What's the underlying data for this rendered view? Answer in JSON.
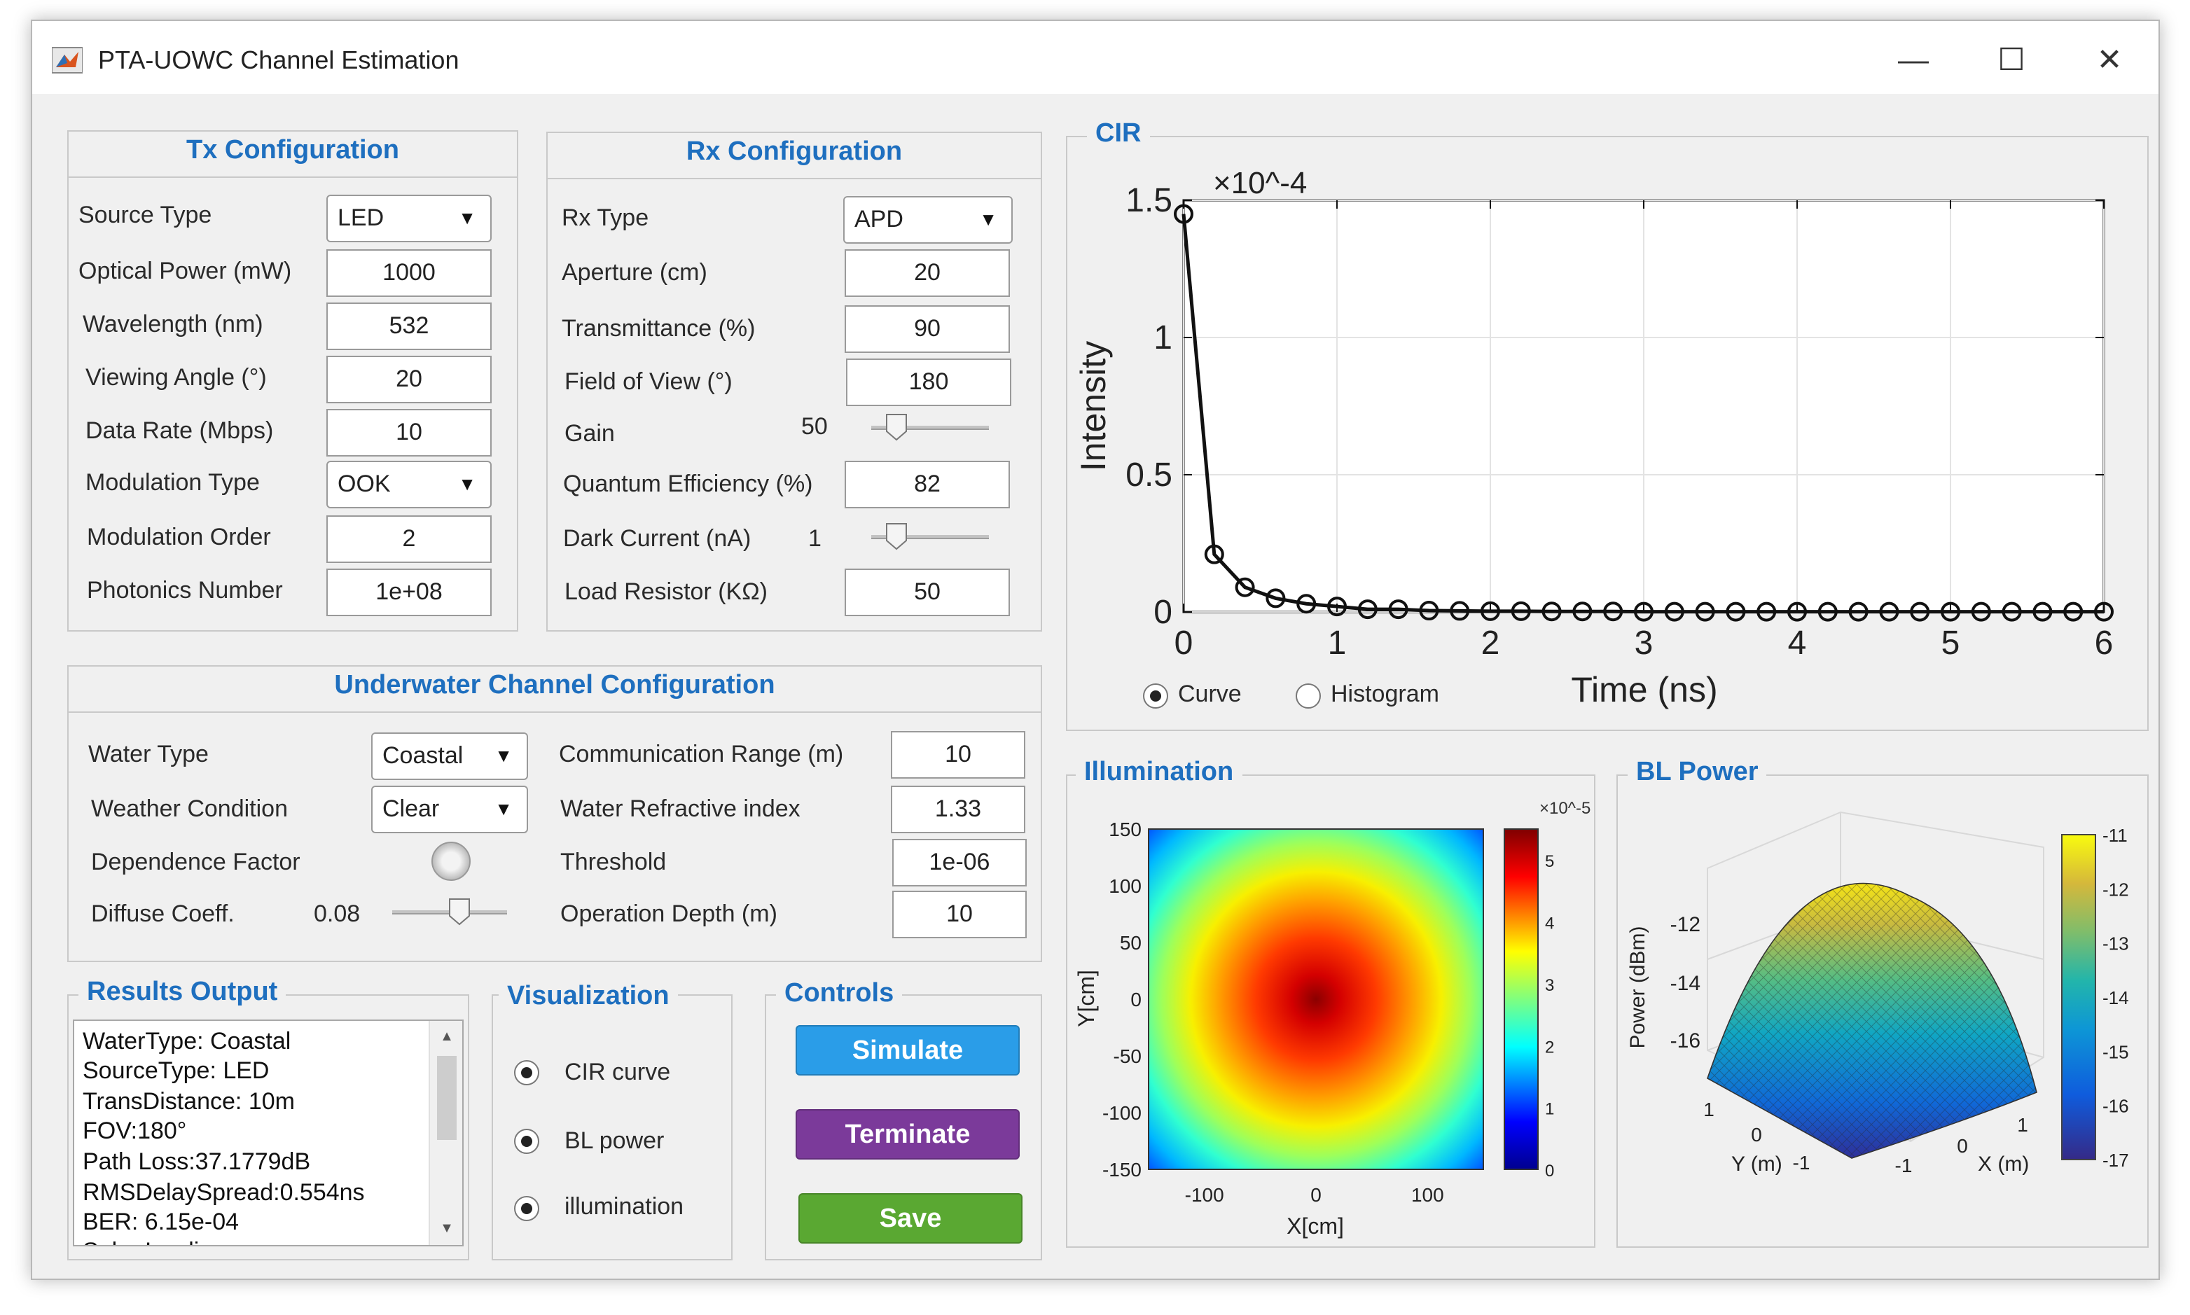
{
  "window": {
    "title": "PTA-UOWC Channel Estimation",
    "minimize": "—",
    "maximize": "☐",
    "close": "✕"
  },
  "tx": {
    "title": "Tx Configuration",
    "source_type": {
      "label": "Source Type",
      "value": "LED"
    },
    "optical_power": {
      "label": "Optical Power (mW)",
      "value": "1000"
    },
    "wavelength": {
      "label": "Wavelength (nm)",
      "value": "532"
    },
    "viewing_angle": {
      "label": "Viewing Angle (°)",
      "value": "20"
    },
    "data_rate": {
      "label": "Data Rate (Mbps)",
      "value": "10"
    },
    "modulation_type": {
      "label": "Modulation Type",
      "value": "OOK"
    },
    "modulation_order": {
      "label": "Modulation Order",
      "value": "2"
    },
    "photonics_number": {
      "label": "Photonics Number",
      "value": "1e+08"
    }
  },
  "rx": {
    "title": "Rx Configuration",
    "rx_type": {
      "label": "Rx Type",
      "value": "APD"
    },
    "aperture": {
      "label": "Aperture (cm)",
      "value": "20"
    },
    "transmittance": {
      "label": "Transmittance (%)",
      "value": "90"
    },
    "fov": {
      "label": "Field of View (°)",
      "value": "180"
    },
    "gain": {
      "label": "Gain",
      "value": "50",
      "slider_fraction": 0.15
    },
    "quantum_efficiency": {
      "label": "Quantum Efficiency (%)",
      "value": "82"
    },
    "dark_current": {
      "label": "Dark Current (nA)",
      "value": "1",
      "slider_fraction": 0.15
    },
    "load_resistor": {
      "label": "Load Resistor (KΩ)",
      "value": "50"
    }
  },
  "channel": {
    "title": "Underwater Channel Configuration",
    "water_type": {
      "label": "Water Type",
      "value": "Coastal"
    },
    "weather": {
      "label": "Weather Condition",
      "value": "Clear"
    },
    "dependence": {
      "label": "Dependence Factor"
    },
    "diffuse": {
      "label": "Diffuse Coeff.",
      "value": "0.08",
      "slider_fraction": 0.6
    },
    "range": {
      "label": "Communication Range (m)",
      "value": "10"
    },
    "refractive": {
      "label": "Water Refractive index",
      "value": "1.33"
    },
    "threshold": {
      "label": "Threshold",
      "value": "1e-06"
    },
    "depth": {
      "label": "Operation Depth (m)",
      "value": "10"
    }
  },
  "results": {
    "title": "Results Output",
    "lines": [
      "WaterType: Coastal",
      "SourceType: LED",
      "TransDistance: 10m",
      "FOV:180°",
      "Path Loss:37.1779dB",
      "RMSDelaySpread:0.554ns",
      "BER: 6.15e-04",
      "Solar Irradiance"
    ]
  },
  "visualization": {
    "title": "Visualization",
    "options": [
      "CIR curve",
      "BL power",
      "illumination"
    ]
  },
  "controls": {
    "title": "Controls",
    "simulate": "Simulate",
    "terminate": "Terminate",
    "save": "Save",
    "colors": {
      "simulate": "#2a9de8",
      "terminate": "#7b3a9a",
      "save": "#5aa832"
    }
  },
  "cir": {
    "title": "CIR",
    "radio_curve": "Curve",
    "radio_histogram": "Histogram",
    "selected": "Curve"
  },
  "illumination": {
    "title": "Illumination"
  },
  "bl_power": {
    "title": "BL Power"
  },
  "chart_data": [
    {
      "type": "line",
      "title": "",
      "xlabel": "Time (ns)",
      "ylabel": "Intensity",
      "y_exponent": "×10^-4",
      "xlim": [
        0,
        6
      ],
      "ylim": [
        0,
        1.5
      ],
      "x_ticks": [
        "0",
        "1",
        "2",
        "3",
        "4",
        "5",
        "6"
      ],
      "y_ticks": [
        "0",
        "0.5",
        "1",
        "1.5"
      ],
      "grid": true,
      "series": [
        {
          "marker": "circle",
          "x": [
            0,
            0.2,
            0.4,
            0.6,
            0.8,
            1.0,
            1.2,
            1.4,
            1.6,
            1.8,
            2.0,
            2.2,
            2.4,
            2.6,
            2.8,
            3.0,
            3.2,
            3.4,
            3.6,
            3.8,
            4.0,
            4.2,
            4.4,
            4.6,
            4.8,
            5.0,
            5.2,
            5.4,
            5.6,
            5.8,
            6.0
          ],
          "y": [
            1.45,
            0.21,
            0.09,
            0.05,
            0.03,
            0.02,
            0.01,
            0.01,
            0.005,
            0.004,
            0.003,
            0.003,
            0.002,
            0.002,
            0.002,
            0.001,
            0.001,
            0.001,
            0.001,
            0.001,
            0.001,
            0.001,
            0.001,
            0.001,
            0.001,
            0.001,
            0.001,
            0.001,
            0.001,
            0.001,
            0.001
          ]
        }
      ]
    },
    {
      "type": "heatmap",
      "xlabel": "X[cm]",
      "ylabel": "Y[cm]",
      "xlim": [
        -150,
        150
      ],
      "ylim": [
        -150,
        150
      ],
      "x_ticks": [
        "-100",
        "0",
        "100"
      ],
      "y_ticks": [
        "150",
        "100",
        "50",
        "0",
        "-50",
        "-100",
        "-150"
      ],
      "colorbar_exponent": "×10^-5",
      "colorbar_ticks": [
        "5",
        "4",
        "3",
        "2",
        "1",
        "0"
      ],
      "colorbar_range": [
        0,
        5.5
      ],
      "center_value": 5.5,
      "corner_value": 0.8
    },
    {
      "type": "surface",
      "zlabel": "Power (dBm)",
      "xlabel": "X (m)",
      "ylabel": "Y (m)",
      "z_ticks": [
        "-12",
        "-14",
        "-16"
      ],
      "x_ticks": [
        "-1",
        "0",
        "1"
      ],
      "y_ticks": [
        "1",
        "0",
        "-1"
      ],
      "colorbar_ticks": [
        "-11",
        "-12",
        "-13",
        "-14",
        "-15",
        "-16",
        "-17"
      ],
      "colorbar_range": [
        -17,
        -11
      ]
    }
  ]
}
